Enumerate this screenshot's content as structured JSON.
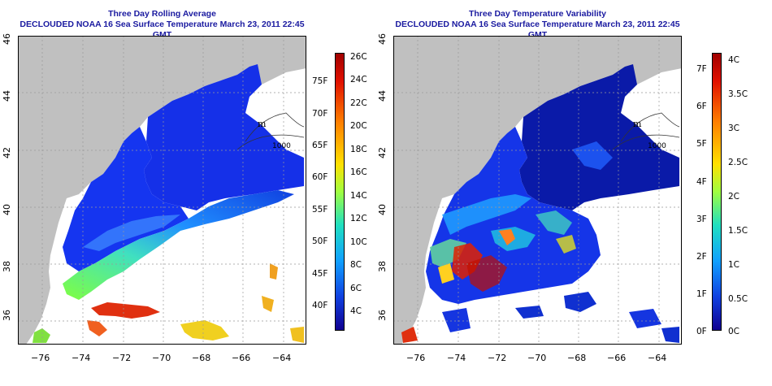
{
  "panels": [
    {
      "id": "left",
      "title1": "Three Day Rolling Average",
      "title2": "DECLOUDED NOAA 16 Sea Surface Temperature March 23, 2011 22:45 GMT",
      "xticks": [
        "−76",
        "−74",
        "−72",
        "−70",
        "−68",
        "−66",
        "−64"
      ],
      "yticks": [
        "36",
        "38",
        "40",
        "42",
        "44",
        "46"
      ],
      "colorbar": {
        "celsius": [
          "26C",
          "24C",
          "22C",
          "20C",
          "18C",
          "16C",
          "14C",
          "12C",
          "10C",
          "8C",
          "6C",
          "4C"
        ],
        "fahrenheit": [
          "75F",
          "70F",
          "65F",
          "60F",
          "55F",
          "50F",
          "45F",
          "40F"
        ]
      },
      "depth_label": "m",
      "depth_value": "1000"
    },
    {
      "id": "right",
      "title1": "Three Day Temperature Variability",
      "title2": "DECLOUDED NOAA 16 Sea Surface Temperature March 23, 2011 22:45 GMT",
      "xticks": [
        "−76",
        "−74",
        "−72",
        "−70",
        "−68",
        "−66",
        "−64"
      ],
      "yticks": [
        "36",
        "38",
        "40",
        "42",
        "44",
        "46"
      ],
      "colorbar": {
        "celsius": [
          "4C",
          "3.5C",
          "3C",
          "2.5C",
          "2C",
          "1.5C",
          "1C",
          "0.5C",
          "0C"
        ],
        "fahrenheit": [
          "7F",
          "6F",
          "5F",
          "4F",
          "3F",
          "2F",
          "1F",
          "0F"
        ]
      },
      "depth_label": "m",
      "depth_value": "1000"
    }
  ],
  "colors": {
    "land": "#c0c0c0",
    "title": "#1a1aa0",
    "grid": "#999999"
  }
}
